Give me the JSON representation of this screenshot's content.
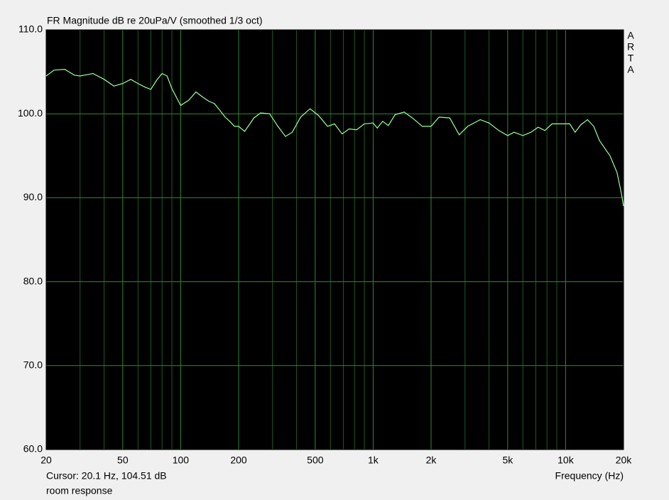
{
  "chart_data": {
    "type": "line",
    "title": "FR Magnitude dB re 20uPa/V (smoothed 1/3 oct)",
    "brand": [
      "A",
      "R",
      "T",
      "A"
    ],
    "x_label": "Frequency (Hz)",
    "cursor": "Cursor: 20.1 Hz, 104.51 dB",
    "legend": "room response",
    "x_scale": "log",
    "grid": true,
    "xlim": [
      20,
      20000
    ],
    "xticks": [
      20,
      50,
      100,
      200,
      500,
      {
        "value": 1000,
        "label": "1k"
      },
      {
        "value": 2000,
        "label": "2k"
      },
      {
        "value": 5000,
        "label": "5k"
      },
      {
        "value": 10000,
        "label": "10k"
      },
      {
        "value": 20000,
        "label": "20k"
      }
    ],
    "x_minor_ticks": [
      30,
      40,
      60,
      70,
      80,
      90,
      300,
      400,
      600,
      700,
      800,
      900,
      3000,
      4000,
      6000,
      7000,
      8000,
      9000
    ],
    "ylim": [
      60,
      110
    ],
    "yticks": [
      {
        "value": 60,
        "label": "60.0"
      },
      {
        "value": 70,
        "label": "70.0"
      },
      {
        "value": 80,
        "label": "80.0"
      },
      {
        "value": 90,
        "label": "90.0"
      },
      {
        "value": 100,
        "label": "100.0"
      },
      {
        "value": 110,
        "label": "110.0"
      }
    ],
    "series": [
      {
        "color": "#9cff9c",
        "x": [
          20,
          22,
          25,
          28,
          30,
          35,
          40,
          45,
          50,
          55,
          60,
          65,
          70,
          75,
          80,
          85,
          90,
          100,
          110,
          120,
          130,
          140,
          150,
          160,
          170,
          180,
          190,
          200,
          215,
          240,
          260,
          290,
          320,
          350,
          380,
          420,
          470,
          520,
          580,
          630,
          690,
          750,
          820,
          900,
          1000,
          1050,
          1120,
          1200,
          1300,
          1450,
          1600,
          1800,
          2000,
          2200,
          2500,
          2800,
          3100,
          3600,
          4000,
          4500,
          5000,
          5400,
          6000,
          6600,
          7200,
          7800,
          8500,
          9500,
          10500,
          11200,
          12000,
          13000,
          14000,
          15000,
          17000,
          18500,
          19500,
          20000
        ],
        "values": [
          104.5,
          105.2,
          105.3,
          104.6,
          104.5,
          104.8,
          104.1,
          103.3,
          103.6,
          104.1,
          103.6,
          103.2,
          102.9,
          104.0,
          104.8,
          104.5,
          103.0,
          101.0,
          101.6,
          102.6,
          102.0,
          101.5,
          101.2,
          100.4,
          99.6,
          99.1,
          98.5,
          98.5,
          97.9,
          99.5,
          100.1,
          100.0,
          98.5,
          97.3,
          97.8,
          99.6,
          100.6,
          99.8,
          98.5,
          98.8,
          97.6,
          98.2,
          98.1,
          98.8,
          98.9,
          98.3,
          99.1,
          98.6,
          99.9,
          100.2,
          99.5,
          98.5,
          98.5,
          99.6,
          99.5,
          97.5,
          98.5,
          99.3,
          98.9,
          98.0,
          97.4,
          97.8,
          97.4,
          97.8,
          98.4,
          98.0,
          98.8,
          98.8,
          98.8,
          97.8,
          98.7,
          99.3,
          98.5,
          96.8,
          95.0,
          93.0,
          90.5,
          89.0
        ]
      }
    ]
  }
}
